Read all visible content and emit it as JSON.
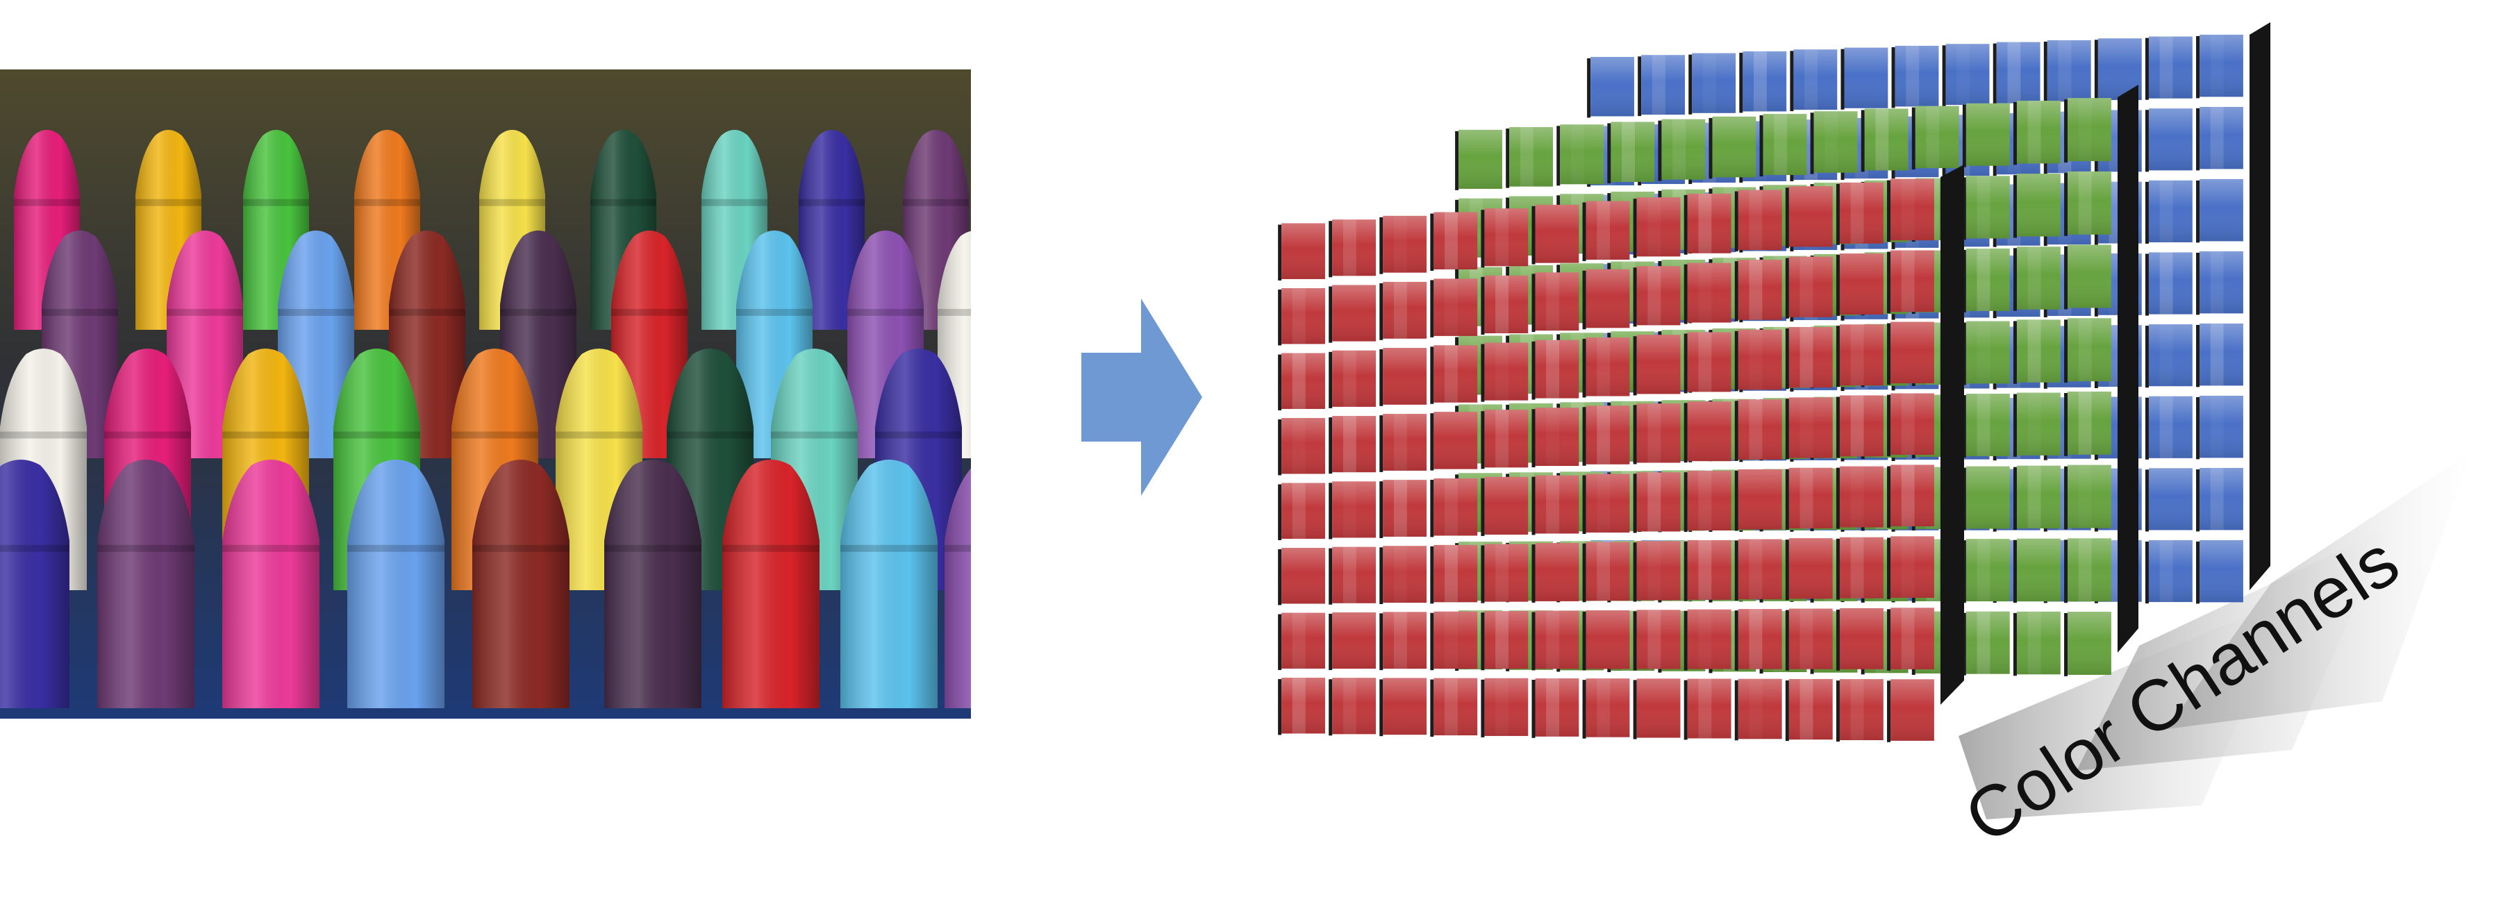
{
  "diagram": {
    "label_text": "Color Channels",
    "arrow_color": "#6f99d3",
    "crayon_photo": {
      "crayon_colors": [
        "#e61e7a",
        "#ef7a1f",
        "#6bd3c1",
        "#ed3a9a",
        "#4a2f4f",
        "#8e51b3",
        "#f2b511",
        "#f6e14a",
        "#3a2fa3",
        "#6aa2ee",
        "#d8242a",
        "#f4f2e9",
        "#49c33e",
        "#1f4f3a",
        "#6e3a74",
        "#8c2a24",
        "#5cc3ee"
      ]
    },
    "channels": [
      {
        "name": "blue",
        "cell_color": "#4a71c7",
        "rows": 8,
        "cols": 13
      },
      {
        "name": "green",
        "cell_color": "#67a33f",
        "rows": 8,
        "cols": 13
      },
      {
        "name": "red",
        "cell_color": "#c0393c",
        "rows": 8,
        "cols": 13
      }
    ]
  }
}
